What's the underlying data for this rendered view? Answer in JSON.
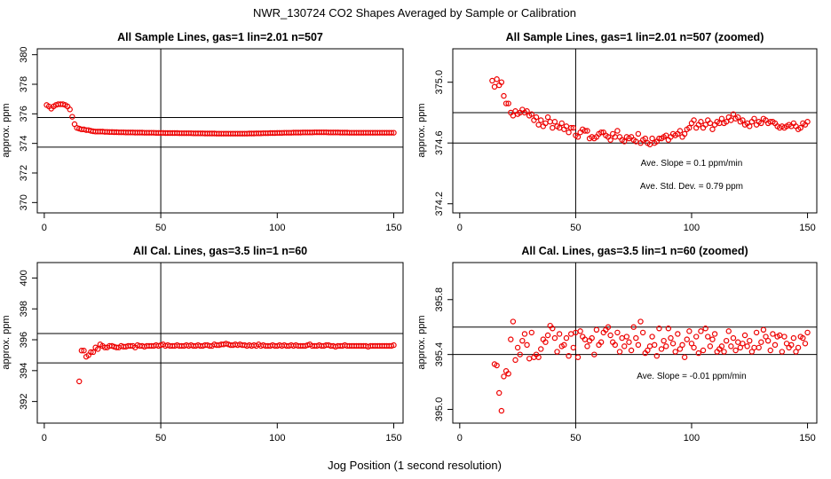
{
  "figure": {
    "title": "NWR_130724  CO2 Shapes Averaged by Sample or Calibration",
    "xlabel": "Jog Position (1 second resolution)"
  },
  "colors": {
    "points": "#ee0000",
    "axes": "#000000",
    "background": "#ffffff"
  },
  "chart_data": [
    {
      "type": "scatter",
      "title": "All Sample Lines, gas=1 lin=2.01 n=507",
      "ylabel": "approx. ppm",
      "xlim": [
        -3,
        154
      ],
      "ylim": [
        369.3,
        380.4
      ],
      "xticks": [
        0,
        50,
        100,
        150
      ],
      "yticks": [
        370,
        372,
        374,
        376,
        378,
        380
      ],
      "vline": 50,
      "hlines": [
        373.75,
        375.75
      ],
      "annotations": [],
      "x": [
        1,
        2,
        3,
        4,
        5,
        6,
        7,
        8,
        9,
        10,
        11,
        12,
        13,
        14,
        15,
        16,
        17,
        18,
        19,
        20,
        21,
        22,
        23,
        24,
        25,
        26,
        27,
        28,
        29,
        30,
        31,
        32,
        33,
        34,
        35,
        36,
        37,
        38,
        39,
        40,
        41,
        42,
        43,
        44,
        45,
        46,
        47,
        48,
        49,
        50,
        51,
        52,
        53,
        54,
        55,
        56,
        57,
        58,
        59,
        60,
        61,
        62,
        63,
        64,
        65,
        66,
        67,
        68,
        69,
        70,
        71,
        72,
        73,
        74,
        75,
        76,
        77,
        78,
        79,
        80,
        81,
        82,
        83,
        84,
        85,
        86,
        87,
        88,
        89,
        90,
        91,
        92,
        93,
        94,
        95,
        96,
        97,
        98,
        99,
        100,
        101,
        102,
        103,
        104,
        105,
        106,
        107,
        108,
        109,
        110,
        111,
        112,
        113,
        114,
        115,
        116,
        117,
        118,
        119,
        120,
        121,
        122,
        123,
        124,
        125,
        126,
        127,
        128,
        129,
        130,
        131,
        132,
        133,
        134,
        135,
        136,
        137,
        138,
        139,
        140,
        141,
        142,
        143,
        144,
        145,
        146,
        147,
        148,
        149,
        150
      ],
      "y": [
        376.6,
        376.5,
        376.35,
        376.5,
        376.6,
        376.65,
        376.65,
        376.65,
        376.6,
        376.5,
        376.3,
        375.8,
        375.3,
        375.05,
        375.0,
        374.95,
        374.95,
        374.9,
        374.9,
        374.85,
        374.82,
        374.8,
        374.8,
        374.8,
        374.8,
        374.78,
        374.78,
        374.77,
        374.77,
        374.76,
        374.76,
        374.75,
        374.75,
        374.75,
        374.74,
        374.74,
        374.74,
        374.74,
        374.73,
        374.73,
        374.73,
        374.73,
        374.72,
        374.72,
        374.72,
        374.72,
        374.72,
        374.71,
        374.71,
        374.71,
        374.71,
        374.7,
        374.7,
        374.7,
        374.7,
        374.7,
        374.7,
        374.69,
        374.69,
        374.69,
        374.69,
        374.69,
        374.69,
        374.68,
        374.68,
        374.68,
        374.68,
        374.68,
        374.67,
        374.67,
        374.67,
        374.67,
        374.67,
        374.66,
        374.66,
        374.66,
        374.66,
        374.66,
        374.66,
        374.66,
        374.66,
        374.66,
        374.66,
        374.66,
        374.66,
        374.66,
        374.66,
        374.67,
        374.67,
        374.67,
        374.68,
        374.68,
        374.68,
        374.69,
        374.69,
        374.69,
        374.7,
        374.7,
        374.7,
        374.71,
        374.71,
        374.71,
        374.72,
        374.72,
        374.72,
        374.72,
        374.73,
        374.73,
        374.73,
        374.73,
        374.74,
        374.74,
        374.74,
        374.74,
        374.74,
        374.75,
        374.75,
        374.75,
        374.75,
        374.75,
        374.75,
        374.74,
        374.74,
        374.74,
        374.74,
        374.74,
        374.73,
        374.73,
        374.73,
        374.73,
        374.72,
        374.72,
        374.72,
        374.72,
        374.72,
        374.72,
        374.72,
        374.72,
        374.72,
        374.72,
        374.72,
        374.72,
        374.72,
        374.72,
        374.72,
        374.72,
        374.72,
        374.72,
        374.72,
        374.72
      ]
    },
    {
      "type": "scatter",
      "title": "All Sample Lines, gas=1 lin=2.01 n=507 (zoomed)",
      "ylabel": "approx. ppm",
      "xlim": [
        -3,
        154
      ],
      "ylim": [
        374.14,
        375.22
      ],
      "xticks": [
        0,
        50,
        100,
        150
      ],
      "yticks": [
        374.2,
        374.6,
        375.0
      ],
      "vline": 50,
      "hlines": [
        374.6,
        374.8
      ],
      "annotations": [
        "Ave. Slope = 0.1  ppm/min",
        "Ave. Std. Dev. =  0.79  ppm"
      ],
      "x": [
        14,
        15,
        16,
        17,
        18,
        19,
        20,
        21,
        22,
        23,
        24,
        25,
        26,
        27,
        28,
        29,
        30,
        31,
        32,
        33,
        34,
        35,
        36,
        37,
        38,
        39,
        40,
        41,
        42,
        43,
        44,
        45,
        46,
        47,
        48,
        49,
        50,
        51,
        52,
        53,
        54,
        55,
        56,
        57,
        58,
        59,
        60,
        61,
        62,
        63,
        64,
        65,
        66,
        67,
        68,
        69,
        70,
        71,
        72,
        73,
        74,
        75,
        76,
        77,
        78,
        79,
        80,
        81,
        82,
        83,
        84,
        85,
        86,
        87,
        88,
        89,
        90,
        91,
        92,
        93,
        94,
        95,
        96,
        97,
        98,
        99,
        100,
        101,
        102,
        103,
        104,
        105,
        106,
        107,
        108,
        109,
        110,
        111,
        112,
        113,
        114,
        115,
        116,
        117,
        118,
        119,
        120,
        121,
        122,
        123,
        124,
        125,
        126,
        127,
        128,
        129,
        130,
        131,
        132,
        133,
        134,
        135,
        136,
        137,
        138,
        139,
        140,
        141,
        142,
        143,
        144,
        145,
        146,
        147,
        148,
        149,
        150
      ],
      "y": [
        375.01,
        374.97,
        375.02,
        374.98,
        375.0,
        374.91,
        374.86,
        374.86,
        374.8,
        374.78,
        374.81,
        374.79,
        374.8,
        374.82,
        374.8,
        374.81,
        374.78,
        374.79,
        374.75,
        374.77,
        374.72,
        374.75,
        374.71,
        374.73,
        374.77,
        374.74,
        374.7,
        374.74,
        374.71,
        374.7,
        374.73,
        374.69,
        374.71,
        374.67,
        374.7,
        374.7,
        374.65,
        374.64,
        374.67,
        374.69,
        374.68,
        374.68,
        374.63,
        374.64,
        374.63,
        374.64,
        374.66,
        374.67,
        374.67,
        374.65,
        374.64,
        374.62,
        374.66,
        374.64,
        374.68,
        374.64,
        374.62,
        374.61,
        374.64,
        374.63,
        374.64,
        374.62,
        374.61,
        374.66,
        374.6,
        374.62,
        374.63,
        374.6,
        374.59,
        374.63,
        374.6,
        374.61,
        374.63,
        374.63,
        374.64,
        374.65,
        374.62,
        374.64,
        374.66,
        374.65,
        374.66,
        374.68,
        374.64,
        374.66,
        374.69,
        374.7,
        374.73,
        374.75,
        374.7,
        374.72,
        374.74,
        374.7,
        374.72,
        374.75,
        374.73,
        374.69,
        374.72,
        374.74,
        374.73,
        374.76,
        374.73,
        374.74,
        374.77,
        374.75,
        374.79,
        374.76,
        374.77,
        374.74,
        374.75,
        374.72,
        374.73,
        374.71,
        374.74,
        374.76,
        374.72,
        374.74,
        374.73,
        374.76,
        374.75,
        374.73,
        374.74,
        374.74,
        374.73,
        374.71,
        374.7,
        374.71,
        374.7,
        374.71,
        374.72,
        374.71,
        374.73,
        374.71,
        374.69,
        374.7,
        374.73,
        374.72,
        374.74
      ]
    },
    {
      "type": "scatter",
      "title": "All Cal. Lines, gas=3.5 lin=1 n=60",
      "ylabel": "approx. ppm",
      "xlim": [
        -3,
        154
      ],
      "ylim": [
        390.6,
        401.0
      ],
      "xticks": [
        0,
        50,
        100,
        150
      ],
      "yticks": [
        392,
        394,
        396,
        398,
        400
      ],
      "vline": 50,
      "hlines": [
        394.5,
        396.4
      ],
      "annotations": [],
      "x": [
        15,
        16,
        17,
        18,
        19,
        20,
        21,
        22,
        23,
        24,
        25,
        26,
        27,
        28,
        29,
        30,
        31,
        32,
        33,
        34,
        35,
        36,
        37,
        38,
        39,
        40,
        41,
        42,
        43,
        44,
        45,
        46,
        47,
        48,
        49,
        50,
        51,
        52,
        53,
        54,
        55,
        56,
        57,
        58,
        59,
        60,
        61,
        62,
        63,
        64,
        65,
        66,
        67,
        68,
        69,
        70,
        71,
        72,
        73,
        74,
        75,
        76,
        77,
        78,
        79,
        80,
        81,
        82,
        83,
        84,
        85,
        86,
        87,
        88,
        89,
        90,
        91,
        92,
        93,
        94,
        95,
        96,
        97,
        98,
        99,
        100,
        101,
        102,
        103,
        104,
        105,
        106,
        107,
        108,
        109,
        110,
        111,
        112,
        113,
        114,
        115,
        116,
        117,
        118,
        119,
        120,
        121,
        122,
        123,
        124,
        125,
        126,
        127,
        128,
        129,
        130,
        131,
        132,
        133,
        134,
        135,
        136,
        137,
        138,
        139,
        140,
        141,
        142,
        143,
        144,
        145,
        146,
        147,
        148,
        149,
        150
      ],
      "y": [
        393.3,
        395.3,
        395.3,
        394.9,
        395.0,
        395.2,
        395.2,
        395.5,
        395.4,
        395.7,
        395.6,
        395.5,
        395.5,
        395.6,
        395.6,
        395.55,
        395.5,
        395.5,
        395.6,
        395.55,
        395.55,
        395.6,
        395.6,
        395.6,
        395.5,
        395.65,
        395.6,
        395.6,
        395.55,
        395.6,
        395.6,
        395.6,
        395.6,
        395.65,
        395.6,
        395.65,
        395.7,
        395.6,
        395.65,
        395.6,
        395.6,
        395.6,
        395.65,
        395.6,
        395.6,
        395.6,
        395.65,
        395.6,
        395.65,
        395.6,
        395.6,
        395.65,
        395.6,
        395.6,
        395.65,
        395.65,
        395.6,
        395.6,
        395.7,
        395.65,
        395.65,
        395.7,
        395.7,
        395.75,
        395.7,
        395.65,
        395.65,
        395.7,
        395.65,
        395.7,
        395.65,
        395.65,
        395.6,
        395.65,
        395.6,
        395.65,
        395.6,
        395.7,
        395.6,
        395.65,
        395.6,
        395.6,
        395.6,
        395.65,
        395.6,
        395.6,
        395.65,
        395.6,
        395.65,
        395.6,
        395.6,
        395.65,
        395.6,
        395.65,
        395.6,
        395.6,
        395.6,
        395.6,
        395.65,
        395.7,
        395.6,
        395.6,
        395.6,
        395.65,
        395.6,
        395.6,
        395.65,
        395.65,
        395.6,
        395.6,
        395.55,
        395.6,
        395.6,
        395.6,
        395.65,
        395.6,
        395.6,
        395.6,
        395.6,
        395.6,
        395.6,
        395.6,
        395.6,
        395.6,
        395.55,
        395.6,
        395.6,
        395.6,
        395.6,
        395.6,
        395.6,
        395.6,
        395.6,
        395.6,
        395.6,
        395.65
      ]
    },
    {
      "type": "scatter",
      "title": "All Cal. Lines, gas=3.5 lin=1 n=60 (zoomed)",
      "ylabel": "approx. ppm",
      "xlim": [
        -3,
        154
      ],
      "ylim": [
        394.9,
        396.07
      ],
      "xticks": [
        0,
        50,
        100,
        150
      ],
      "yticks": [
        395.0,
        395.4,
        395.8
      ],
      "vline": 50,
      "hlines": [
        395.4,
        395.6
      ],
      "annotations": [
        "Ave. Slope =  -0.01  ppm/min"
      ],
      "x": [
        15,
        16,
        17,
        18,
        19,
        20,
        21,
        22,
        23,
        24,
        25,
        26,
        27,
        28,
        29,
        30,
        31,
        32,
        33,
        34,
        35,
        36,
        37,
        38,
        39,
        40,
        41,
        42,
        43,
        44,
        45,
        46,
        47,
        48,
        49,
        50,
        51,
        52,
        53,
        54,
        55,
        56,
        57,
        58,
        59,
        60,
        61,
        62,
        63,
        64,
        65,
        66,
        67,
        68,
        69,
        70,
        71,
        72,
        73,
        74,
        75,
        76,
        77,
        78,
        79,
        80,
        81,
        82,
        83,
        84,
        85,
        86,
        87,
        88,
        89,
        90,
        91,
        92,
        93,
        94,
        95,
        96,
        97,
        98,
        99,
        100,
        101,
        102,
        103,
        104,
        105,
        106,
        107,
        108,
        109,
        110,
        111,
        112,
        113,
        114,
        115,
        116,
        117,
        118,
        119,
        120,
        121,
        122,
        123,
        124,
        125,
        126,
        127,
        128,
        129,
        130,
        131,
        132,
        133,
        134,
        135,
        136,
        137,
        138,
        139,
        140,
        141,
        142,
        143,
        144,
        145,
        146,
        147,
        148,
        149,
        150
      ],
      "y": [
        395.33,
        395.32,
        395.12,
        394.99,
        395.24,
        395.28,
        395.26,
        395.51,
        395.64,
        395.36,
        395.45,
        395.4,
        395.5,
        395.55,
        395.47,
        395.37,
        395.56,
        395.38,
        395.4,
        395.38,
        395.44,
        395.51,
        395.49,
        395.54,
        395.61,
        395.59,
        395.52,
        395.42,
        395.55,
        395.46,
        395.47,
        395.52,
        395.39,
        395.55,
        395.45,
        395.56,
        395.38,
        395.57,
        395.53,
        395.51,
        395.46,
        395.5,
        395.52,
        395.4,
        395.58,
        395.47,
        395.49,
        395.56,
        395.58,
        395.6,
        395.54,
        395.49,
        395.47,
        395.56,
        395.42,
        395.52,
        395.46,
        395.53,
        395.49,
        395.43,
        395.6,
        395.52,
        395.47,
        395.64,
        395.56,
        395.41,
        395.43,
        395.46,
        395.53,
        395.47,
        395.39,
        395.59,
        395.44,
        395.5,
        395.46,
        395.59,
        395.52,
        395.48,
        395.42,
        395.55,
        395.44,
        395.47,
        395.38,
        395.51,
        395.57,
        395.48,
        395.45,
        395.53,
        395.41,
        395.57,
        395.43,
        395.59,
        395.53,
        395.46,
        395.51,
        395.55,
        395.42,
        395.44,
        395.46,
        395.42,
        395.5,
        395.57,
        395.46,
        395.52,
        395.43,
        395.49,
        395.45,
        395.48,
        395.54,
        395.46,
        395.5,
        395.42,
        395.45,
        395.56,
        395.45,
        395.49,
        395.58,
        395.53,
        395.5,
        395.43,
        395.55,
        395.47,
        395.53,
        395.54,
        395.42,
        395.53,
        395.48,
        395.45,
        395.47,
        395.52,
        395.42,
        395.45,
        395.53,
        395.52,
        395.48,
        395.56
      ]
    }
  ]
}
